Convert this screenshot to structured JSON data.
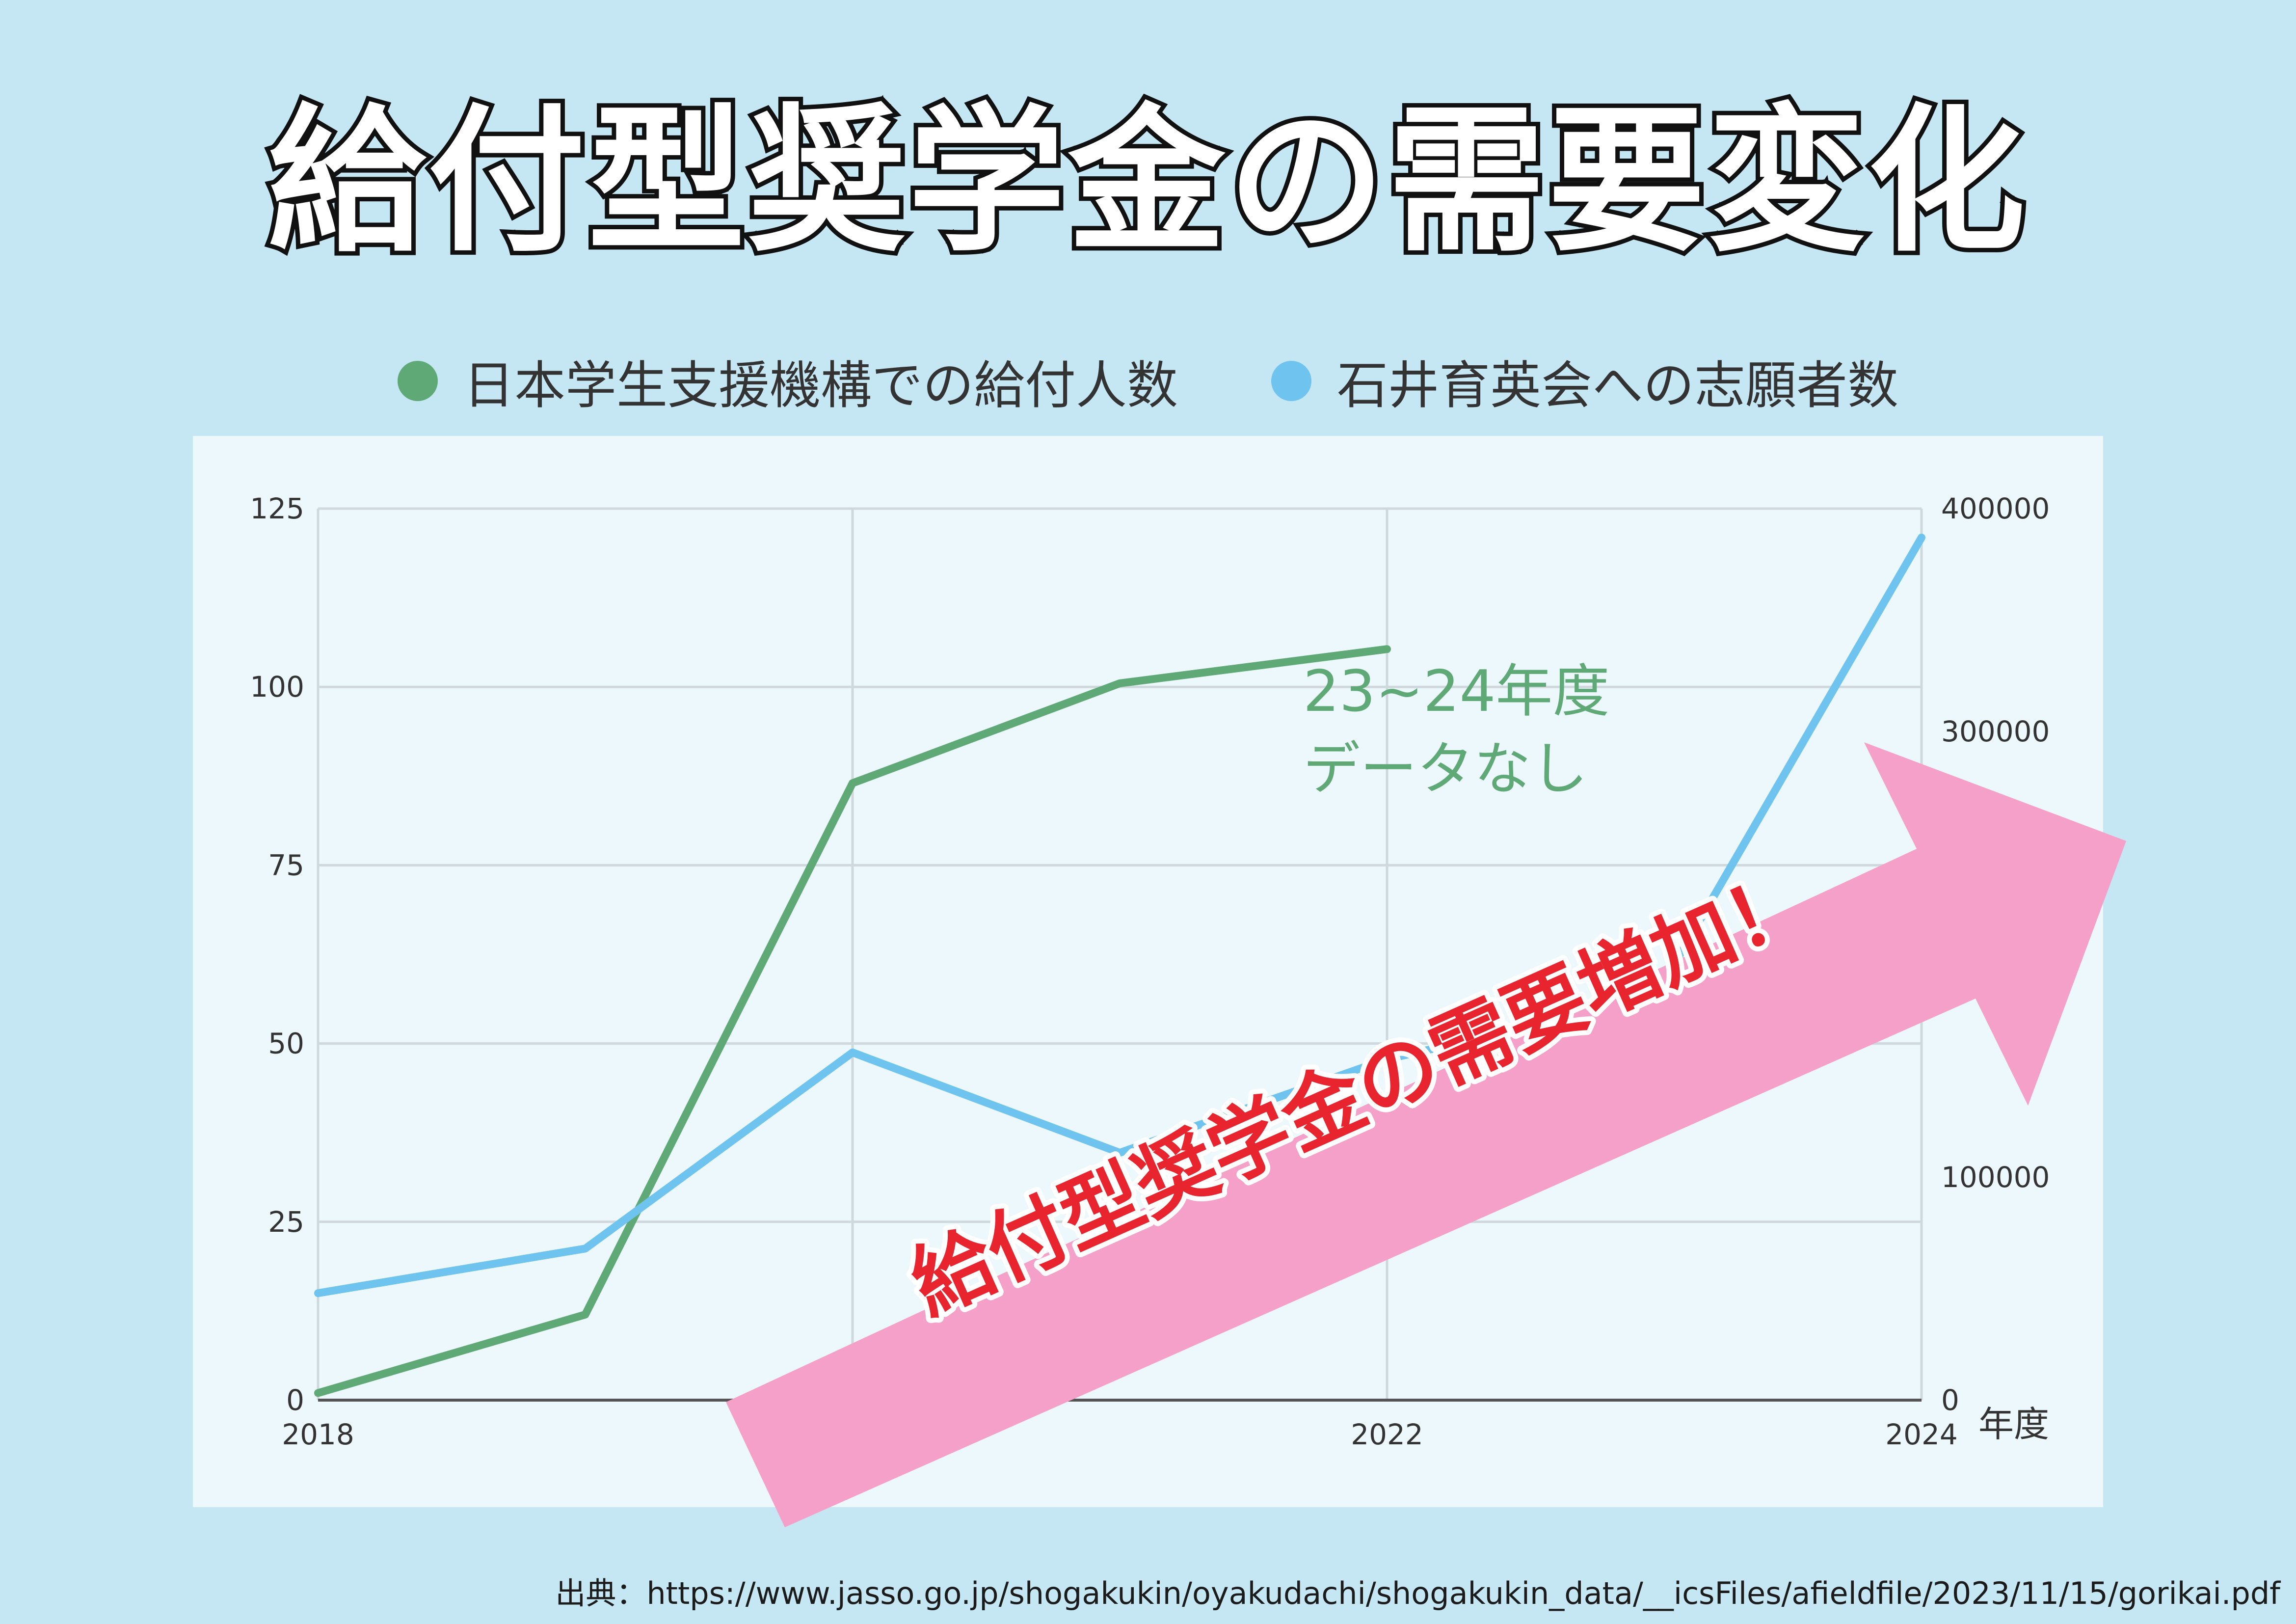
{
  "title": "給付型奨学金の需要変化",
  "legend": [
    {
      "label": "日本学生支援機構での給付人数",
      "color": "#5fa977"
    },
    {
      "label": "石井育英会への志願者数",
      "color": "#6ec4ee"
    }
  ],
  "annotation": {
    "line1": "23~24年度",
    "line2": "データなし"
  },
  "arrow": {
    "text": "給付型奨学金の需要増加！",
    "color": "#f5a0c8",
    "text_fill": "#e8252f",
    "text_stroke": "#ffffff"
  },
  "x_unit_label": "年度",
  "source": "出典：https://www.jasso.go.jp/shogakukin/oyakudachi/shogakukin_data/__icsFiles/afieldfile/2023/11/15/gorikai.pdf",
  "chart_data": {
    "type": "line",
    "x": [
      2018,
      2019,
      2020,
      2021,
      2022,
      2023,
      2024
    ],
    "x_tick_labels": [
      "2018",
      "2022",
      "2024"
    ],
    "xlim": [
      2018,
      2024
    ],
    "left_axis": {
      "ylim": [
        0,
        125
      ],
      "ticks": [
        "0",
        "25",
        "50",
        "75",
        "100",
        "125"
      ]
    },
    "right_axis": {
      "ylim": [
        0,
        400000
      ],
      "ticks": [
        "0",
        "100000",
        "300000",
        "400000"
      ]
    },
    "grid": true,
    "legend_position": "top",
    "series": [
      {
        "name": "日本学生支援機構での給付人数",
        "axis": "left",
        "color": "#5fa977",
        "values": [
          1,
          12,
          86.5,
          100.5,
          105.3,
          null,
          null
        ]
      },
      {
        "name": "石井育英会への志願者数",
        "axis": "right",
        "color": "#6ec4ee",
        "values": [
          48000,
          68000,
          156000,
          111000,
          153000,
          180000,
          387000
        ]
      }
    ]
  }
}
